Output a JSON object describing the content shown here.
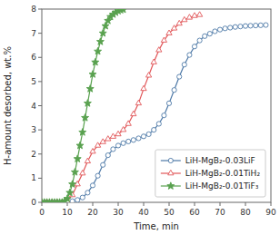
{
  "chart_data": {
    "type": "line",
    "xlabel": "Time, min",
    "ylabel": "H-amount desorbed, wt.%",
    "xlim": [
      0,
      90
    ],
    "ylim": [
      0,
      8
    ],
    "xticks": [
      0,
      10,
      20,
      30,
      40,
      50,
      60,
      70,
      80,
      90
    ],
    "yticks": [
      0,
      1,
      2,
      3,
      4,
      5,
      6,
      7,
      8
    ],
    "grid": false,
    "legend": "lower right",
    "series": [
      {
        "name": "LiH-MgB₂-0.03LiF",
        "color": "#4e79a7",
        "marker": "circle",
        "x": [
          0,
          2,
          4,
          6,
          8,
          10,
          12,
          14,
          16,
          18,
          20,
          22,
          24,
          26,
          28,
          30,
          32,
          34,
          36,
          38,
          40,
          42,
          44,
          46,
          48,
          50,
          52,
          54,
          56,
          58,
          60,
          62,
          64,
          66,
          68,
          70,
          72,
          74,
          76,
          78,
          80,
          82,
          84,
          86,
          88
        ],
        "values": [
          0.0,
          0.0,
          0.0,
          0.0,
          0.0,
          0.0,
          0.05,
          0.1,
          0.2,
          0.4,
          0.7,
          1.1,
          1.55,
          1.95,
          2.2,
          2.35,
          2.45,
          2.52,
          2.58,
          2.65,
          2.73,
          2.82,
          3.0,
          3.25,
          3.6,
          4.1,
          4.65,
          5.2,
          5.7,
          6.1,
          6.45,
          6.7,
          6.88,
          6.98,
          7.08,
          7.15,
          7.2,
          7.23,
          7.26,
          7.28,
          7.3,
          7.31,
          7.32,
          7.33,
          7.34
        ]
      },
      {
        "name": "LiH-MgB₂-0.01TiH₂",
        "color": "#e15759",
        "marker": "triangle",
        "x": [
          0,
          2,
          4,
          6,
          8,
          10,
          12,
          14,
          16,
          18,
          20,
          22,
          24,
          26,
          28,
          30,
          32,
          34,
          36,
          38,
          40,
          42,
          44,
          46,
          48,
          50,
          52,
          54,
          56,
          58,
          60,
          62
        ],
        "values": [
          0.0,
          0.0,
          0.0,
          0.0,
          0.0,
          0.05,
          0.3,
          0.75,
          1.2,
          1.7,
          2.1,
          2.35,
          2.5,
          2.62,
          2.72,
          2.82,
          3.0,
          3.25,
          3.65,
          4.1,
          4.7,
          5.25,
          5.8,
          6.3,
          6.7,
          7.0,
          7.2,
          7.4,
          7.55,
          7.65,
          7.72,
          7.76
        ]
      },
      {
        "name": "LiH-MgB₂-0.01TiF₃",
        "color": "#59a14f",
        "marker": "star",
        "x": [
          0,
          1,
          2,
          3,
          4,
          5,
          6,
          7,
          8,
          9,
          10,
          11,
          12,
          13,
          14,
          15,
          16,
          17,
          18,
          19,
          20,
          21,
          22,
          23,
          24,
          25,
          26,
          27,
          28,
          29,
          30,
          31,
          32
        ],
        "values": [
          0.0,
          0.0,
          0.0,
          0.0,
          0.0,
          0.0,
          0.0,
          0.0,
          0.0,
          0.05,
          0.15,
          0.4,
          0.75,
          1.25,
          1.8,
          2.35,
          2.9,
          3.5,
          4.1,
          4.7,
          5.3,
          5.8,
          6.25,
          6.65,
          7.0,
          7.3,
          7.52,
          7.68,
          7.78,
          7.86,
          7.92,
          7.96,
          7.98
        ]
      }
    ]
  }
}
